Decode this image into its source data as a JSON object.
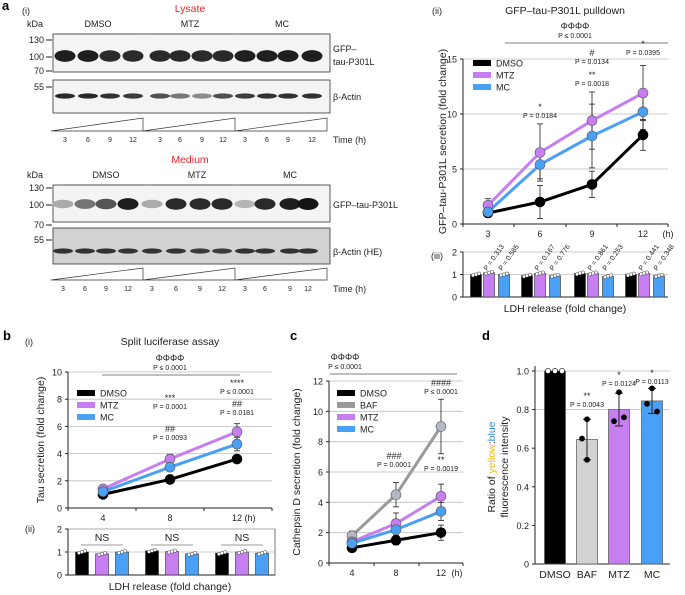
{
  "panel_labels": {
    "a": "a",
    "b": "b",
    "c": "c",
    "d": "d",
    "a_i": "(i)",
    "a_ii": "(ii)",
    "a_iii": "(iii)",
    "b_i": "(i)",
    "b_ii": "(ii)"
  },
  "colors": {
    "DMSO": "#000000",
    "MTZ": "#c77ef0",
    "MC": "#4aa0f5",
    "BAF": "#9a9a9a",
    "title_red": "#e8262a",
    "yellow": "#f2b705",
    "blue": "#3a8de8"
  },
  "blots": {
    "kda_label": "kDa",
    "time_label": "Time (h)",
    "lanes": [
      "3",
      "6",
      "9",
      "12",
      "3",
      "6",
      "9",
      "12",
      "3",
      "6",
      "9",
      "12"
    ],
    "groups": [
      "DMSO",
      "MTZ",
      "MC"
    ],
    "lysate": {
      "title": "Lysate",
      "markers": [
        "130",
        "100",
        "70",
        "55"
      ],
      "gfp_label_1": "GFP–",
      "gfp_label_2": "tau-P301L",
      "actin_label": "β-Actin",
      "gfp_intensity": [
        0.95,
        0.95,
        0.9,
        0.9,
        0.9,
        0.9,
        0.9,
        0.9,
        0.95,
        0.95,
        0.95,
        0.95
      ],
      "actin_intensity": [
        0.9,
        0.9,
        0.85,
        0.8,
        0.7,
        0.5,
        0.4,
        0.7,
        0.8,
        0.85,
        0.85,
        0.85
      ]
    },
    "medium": {
      "title": "Medium",
      "markers": [
        "130",
        "100",
        "70",
        "55"
      ],
      "gfp_label": "GFP–tau-P301L",
      "actin_label": "β-Actin (HE)",
      "gfp_intensity": [
        0.3,
        0.55,
        0.7,
        0.95,
        0.3,
        0.9,
        0.9,
        0.9,
        0.25,
        0.9,
        0.95,
        1.0
      ],
      "actin_intensity": [
        0.85,
        0.85,
        0.85,
        0.85,
        0.85,
        0.85,
        0.8,
        0.8,
        0.85,
        0.85,
        0.85,
        0.85
      ]
    }
  },
  "chart_data": [
    {
      "id": "a-ii",
      "type": "line",
      "title": "GFP–tau-P301L pulldown",
      "ylabel": "GFP–tau-P301L secretion (fold change)",
      "x_unit": "(h)",
      "categories": [
        "3",
        "6",
        "9",
        "12"
      ],
      "ylim": [
        0,
        15
      ],
      "yticks": [
        "0",
        "5",
        "10",
        "15"
      ],
      "grid": true,
      "legend": "top-left",
      "series": [
        {
          "name": "DMSO",
          "values": [
            1.0,
            2.0,
            3.6,
            8.1
          ],
          "err": [
            0.4,
            1.5,
            1.2,
            1.4
          ]
        },
        {
          "name": "MTZ",
          "values": [
            1.7,
            6.5,
            9.4,
            11.9
          ],
          "err": [
            0.6,
            2.6,
            2.6,
            2.5
          ]
        },
        {
          "name": "MC",
          "values": [
            1.1,
            5.4,
            8.0,
            10.2
          ],
          "err": [
            0.5,
            1.3,
            2.9,
            1.6
          ]
        }
      ],
      "overall": {
        "symbol": "ΦΦΦΦ",
        "p": "P ≤ 0.0001"
      },
      "annotations": [
        {
          "x": "6",
          "symbol": "*",
          "p": "P = 0.0184"
        },
        {
          "x": "9",
          "symbol": "#",
          "p": "P = 0.0134"
        },
        {
          "x": "9",
          "symbol": "**",
          "p": "P = 0.0018"
        },
        {
          "x": "12",
          "symbol": "*",
          "p": "P = 0.0395"
        }
      ]
    },
    {
      "id": "a-iii",
      "type": "bar",
      "xlabel": "LDH release (fold change)",
      "categories": [
        "3",
        "6",
        "9",
        "12"
      ],
      "ylim": [
        0,
        2
      ],
      "yticks": [
        "0",
        "1",
        "2"
      ],
      "series": [
        {
          "name": "DMSO",
          "values": [
            1.0,
            0.95,
            1.05,
            1.0
          ]
        },
        {
          "name": "MTZ",
          "values": [
            1.08,
            1.05,
            1.05,
            1.05
          ]
        },
        {
          "name": "MC",
          "values": [
            1.0,
            0.95,
            0.92,
            0.95
          ]
        }
      ],
      "pvalues": [
        "P = 0.313",
        "P = 0.585",
        "P = 0.167",
        "P = 0.776",
        "P = 0.861",
        "P = 0.253",
        "P = 0.441",
        "P = 0.348"
      ]
    },
    {
      "id": "b-i",
      "type": "line",
      "title": "Split luciferase assay",
      "ylabel": "Tau secretion (fold change)",
      "x_unit": "(h)",
      "categories": [
        "4",
        "8",
        "12"
      ],
      "ylim": [
        0,
        10
      ],
      "yticks": [
        "0",
        "2",
        "4",
        "6",
        "8",
        "10"
      ],
      "grid": true,
      "legend": "top-left",
      "series": [
        {
          "name": "DMSO",
          "values": [
            1.0,
            2.1,
            3.6
          ],
          "err": [
            0.1,
            0.15,
            0.3
          ]
        },
        {
          "name": "MTZ",
          "values": [
            1.4,
            3.6,
            5.6
          ],
          "err": [
            0.1,
            0.35,
            0.6
          ]
        },
        {
          "name": "MC",
          "values": [
            1.2,
            3.0,
            4.7
          ],
          "err": [
            0.1,
            0.2,
            0.5
          ]
        }
      ],
      "overall": {
        "symbol": "ΦΦΦΦ",
        "p": "P ≤ 0.0001"
      },
      "annotations": [
        {
          "x": "8",
          "symbol": "***",
          "p": "P = 0.0001"
        },
        {
          "x": "8",
          "symbol": "##",
          "p": "P = 0.0093"
        },
        {
          "x": "12",
          "symbol": "****",
          "p": "P ≤ 0.0001"
        },
        {
          "x": "12",
          "symbol": "##",
          "p": "P = 0.0181"
        }
      ]
    },
    {
      "id": "b-ii",
      "type": "bar",
      "xlabel": "LDH release (fold change)",
      "categories": [
        "4",
        "8",
        "12"
      ],
      "ylim": [
        0,
        2
      ],
      "yticks": [
        "0",
        "1",
        "2"
      ],
      "series": [
        {
          "name": "DMSO",
          "values": [
            1.0,
            1.05,
            0.95
          ]
        },
        {
          "name": "MTZ",
          "values": [
            0.92,
            1.02,
            1.0
          ]
        },
        {
          "name": "MC",
          "values": [
            1.0,
            0.92,
            0.95
          ]
        }
      ],
      "ns_labels": [
        "NS",
        "NS",
        "NS"
      ]
    },
    {
      "id": "c",
      "type": "line",
      "ylabel": "Cathepsin D secretion (fold change)",
      "x_unit": "(h)",
      "categories": [
        "4",
        "8",
        "12"
      ],
      "ylim": [
        0,
        12
      ],
      "yticks": [
        "0",
        "2",
        "4",
        "6",
        "8",
        "10",
        "12"
      ],
      "grid": true,
      "legend": "top-left",
      "series": [
        {
          "name": "DMSO",
          "values": [
            1.0,
            1.5,
            2.0
          ],
          "err": [
            0.15,
            0.3,
            0.5
          ]
        },
        {
          "name": "BAF",
          "values": [
            1.8,
            4.5,
            9.0
          ],
          "err": [
            0.3,
            0.8,
            1.8
          ]
        },
        {
          "name": "MTZ",
          "values": [
            1.4,
            2.6,
            4.4
          ],
          "err": [
            0.2,
            0.7,
            0.8
          ]
        },
        {
          "name": "MC",
          "values": [
            1.3,
            2.2,
            3.4
          ],
          "err": [
            0.2,
            0.4,
            0.6
          ]
        }
      ],
      "overall": {
        "symbol": "ΦΦΦΦ",
        "p": "P ≤ 0.0001"
      },
      "annotations": [
        {
          "x": "8",
          "symbol": "###",
          "p": "P = 0.0001"
        },
        {
          "x": "12",
          "symbol": "####",
          "p": "P ≤ 0.0001"
        },
        {
          "x": "12",
          "symbol": "**",
          "p": "P = 0.0019"
        }
      ]
    },
    {
      "id": "d",
      "type": "bar",
      "ylabel_parts": [
        "Ratio of ",
        "yellow",
        ":",
        "blue"
      ],
      "ylabel_line2": "fluorescence intensity",
      "categories": [
        "DMSO",
        "BAF",
        "MTZ",
        "MC"
      ],
      "ylim": [
        0,
        1.0
      ],
      "yticks": [
        "0",
        "0.2",
        "0.4",
        "0.6",
        "0.8",
        "1.0"
      ],
      "values": [
        1.0,
        0.645,
        0.8,
        0.845
      ],
      "err": [
        0,
        0.105,
        0.085,
        0.065
      ],
      "points": [
        [
          1.0,
          1.0,
          1.0
        ],
        [
          0.75,
          0.65,
          0.54
        ],
        [
          0.89,
          0.74,
          0.76
        ],
        [
          0.91,
          0.83,
          0.79
        ]
      ],
      "annotations": [
        {
          "x": "BAF",
          "symbol": "**",
          "p": "P = 0.0043"
        },
        {
          "x": "MTZ",
          "symbol": "*",
          "p": "P = 0.0124"
        },
        {
          "x": "MC",
          "symbol": "*",
          "p": "P = 0.0113"
        }
      ]
    }
  ]
}
